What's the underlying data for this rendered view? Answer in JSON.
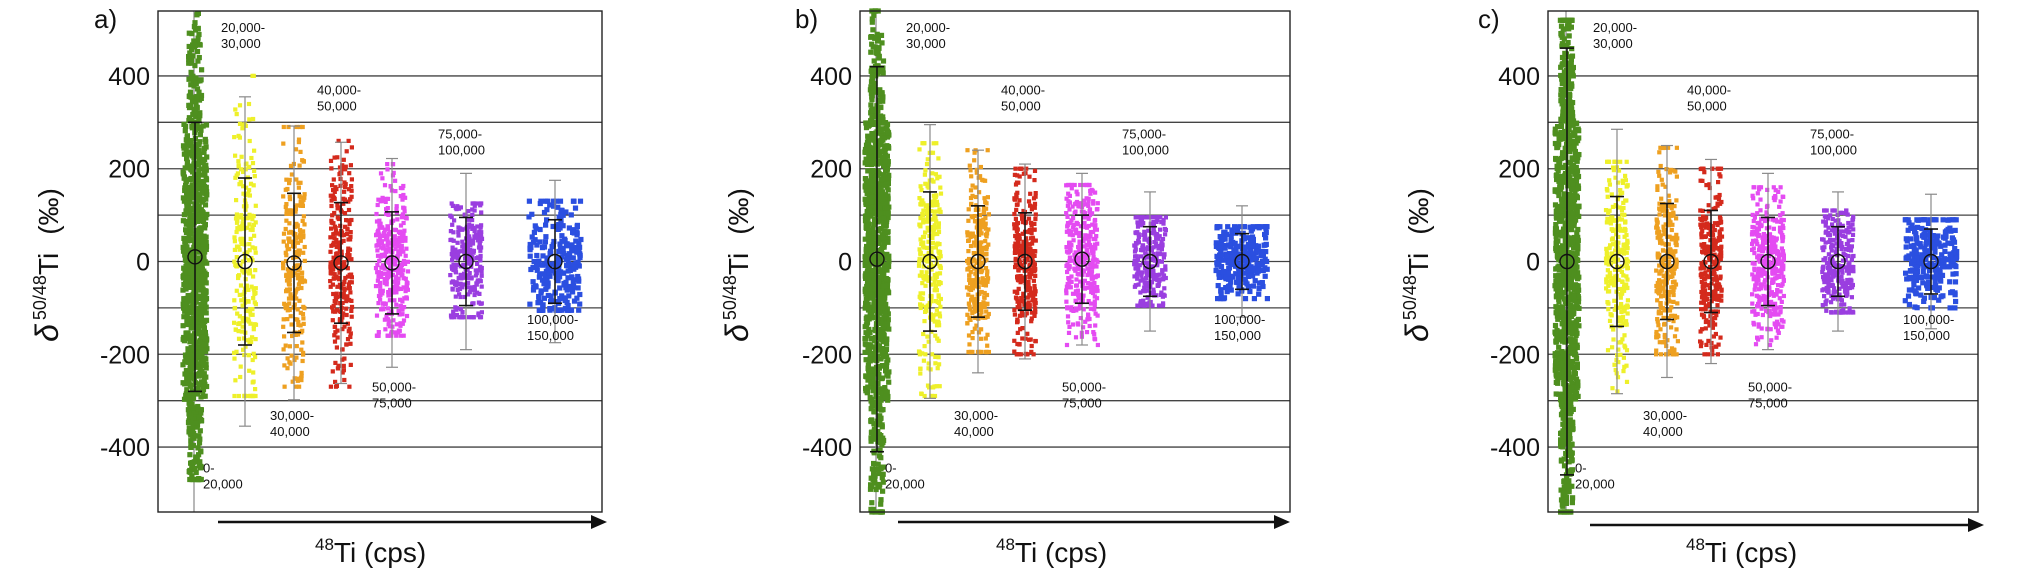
{
  "colors": {
    "green": "#4e8f1f",
    "yellow": "#eef02a",
    "orange": "#eea020",
    "red": "#d42a1c",
    "pink": "#e44bf2",
    "purple": "#9a3ee0",
    "blue": "#2b4fe0",
    "axis": "#222222",
    "grid": "#444444"
  },
  "chart_data": [
    {
      "type": "scatter",
      "panel_label": "a)",
      "ylabel_main": "δ",
      "ylabel_sup": "50/48",
      "ylabel_elem": "Ti",
      "ylabel_unit": "(‰)",
      "xlabel_sup": "48",
      "xlabel_rest": "Ti (cps)",
      "ylim": [
        -540,
        540
      ],
      "yticks": [
        -400,
        -200,
        0,
        200,
        400
      ],
      "grid_y": [
        -400,
        -300,
        -200,
        -100,
        0,
        100,
        200,
        300,
        400
      ],
      "grid": true,
      "groups": [
        {
          "name": "0-20,000",
          "label_line1": "0-",
          "label_line2": "20,000",
          "label_side": "below",
          "color": "green",
          "mean": 10,
          "sd2": 290,
          "n": 900,
          "spread": 235,
          "ymin": -470,
          "ymax": 535
        },
        {
          "name": "20,000-30,000",
          "label_line1": "20,000-",
          "label_line2": "30,000",
          "label_side": "above",
          "color": "yellow",
          "mean": 0,
          "sd2": 180,
          "gray_err": 355,
          "n": 230,
          "spread": 160,
          "ymin": -290,
          "ymax": 400
        },
        {
          "name": "30,000-40,000",
          "label_line1": "30,000-",
          "label_line2": "40,000",
          "label_side": "below",
          "color": "orange",
          "mean": -3,
          "sd2": 150,
          "gray_err": 295,
          "n": 230,
          "spread": 135,
          "ymin": -270,
          "ymax": 290
        },
        {
          "name": "40,000-50,000",
          "label_line1": "40,000-",
          "label_line2": "50,000",
          "label_side": "above",
          "color": "red",
          "mean": -3,
          "sd2": 130,
          "gray_err": 260,
          "n": 260,
          "spread": 115,
          "ymin": -270,
          "ymax": 260
        },
        {
          "name": "50,000-75,000",
          "label_line1": "50,000-",
          "label_line2": "75,000",
          "label_side": "below",
          "color": "pink",
          "mean": -3,
          "sd2": 110,
          "gray_err": 225,
          "n": 320,
          "spread": 90,
          "ymin": -160,
          "ymax": 210
        },
        {
          "name": "75,000-100,000",
          "label_line1": "75,000-",
          "label_line2": "100,000",
          "label_side": "above",
          "color": "purple",
          "mean": 0,
          "sd2": 95,
          "gray_err": 190,
          "n": 260,
          "spread": 75,
          "ymin": -120,
          "ymax": 125
        },
        {
          "name": "100,000-150,000",
          "label_line1": "100,000-",
          "label_line2": "150,000",
          "label_side": "below",
          "color": "blue",
          "mean": 0,
          "sd2": 90,
          "gray_err": 175,
          "n": 260,
          "spread": 70,
          "ymin": -105,
          "ymax": 130
        }
      ]
    },
    {
      "type": "scatter",
      "panel_label": "b)",
      "ylabel_main": "δ",
      "ylabel_sup": "50/48",
      "ylabel_elem": "Ti",
      "ylabel_unit": "(‰)",
      "xlabel_sup": "48",
      "xlabel_rest": "Ti (cps)",
      "ylim": [
        -540,
        540
      ],
      "yticks": [
        -400,
        -200,
        0,
        200,
        400
      ],
      "grid_y": [
        -400,
        -300,
        -200,
        -100,
        0,
        100,
        200,
        300,
        400
      ],
      "grid": true,
      "groups": [
        {
          "name": "0-20,000",
          "label_line1": "0-",
          "label_line2": "20,000",
          "label_side": "below",
          "color": "green",
          "mean": 5,
          "sd2": 415,
          "n": 1000,
          "spread": 240,
          "ymin": -540,
          "ymax": 540
        },
        {
          "name": "20,000-30,000",
          "label_line1": "20,000-",
          "label_line2": "30,000",
          "label_side": "above",
          "color": "yellow",
          "mean": 0,
          "sd2": 150,
          "gray_err": 295,
          "n": 260,
          "spread": 130,
          "ymin": -290,
          "ymax": 255
        },
        {
          "name": "30,000-40,000",
          "label_line1": "30,000-",
          "label_line2": "40,000",
          "label_side": "below",
          "color": "orange",
          "mean": 0,
          "sd2": 120,
          "gray_err": 240,
          "n": 260,
          "spread": 110,
          "ymin": -195,
          "ymax": 240
        },
        {
          "name": "40,000-50,000",
          "label_line1": "40,000-",
          "label_line2": "50,000",
          "label_side": "above",
          "color": "red",
          "mean": 0,
          "sd2": 105,
          "gray_err": 210,
          "n": 280,
          "spread": 95,
          "ymin": -200,
          "ymax": 200
        },
        {
          "name": "50,000-75,000",
          "label_line1": "50,000-",
          "label_line2": "75,000",
          "label_side": "below",
          "color": "pink",
          "mean": 5,
          "sd2": 95,
          "gray_err": 185,
          "n": 330,
          "spread": 80,
          "ymin": -180,
          "ymax": 165
        },
        {
          "name": "75,000-100,000",
          "label_line1": "75,000-",
          "label_line2": "100,000",
          "label_side": "above",
          "color": "purple",
          "mean": 0,
          "sd2": 75,
          "gray_err": 150,
          "n": 260,
          "spread": 60,
          "ymin": -95,
          "ymax": 95
        },
        {
          "name": "100,000-150,000",
          "label_line1": "100,000-",
          "label_line2": "150,000",
          "label_side": "below",
          "color": "blue",
          "mean": 0,
          "sd2": 60,
          "gray_err": 120,
          "n": 260,
          "spread": 45,
          "ymin": -80,
          "ymax": 75
        }
      ]
    },
    {
      "type": "scatter",
      "panel_label": "c)",
      "ylabel_main": "δ",
      "ylabel_sup": "50/48",
      "ylabel_elem": "Ti",
      "ylabel_unit": "(‰)",
      "xlabel_sup": "48",
      "xlabel_rest": "Ti (cps)",
      "ylim": [
        -540,
        540
      ],
      "yticks": [
        -400,
        -200,
        0,
        200,
        400
      ],
      "grid_y": [
        -400,
        -300,
        -200,
        -100,
        0,
        100,
        200,
        300,
        400
      ],
      "grid": true,
      "groups": [
        {
          "name": "0-20,000",
          "label_line1": "0-",
          "label_line2": "20,000",
          "label_side": "below",
          "color": "green",
          "mean": 0,
          "sd2": 460,
          "n": 1000,
          "spread": 250,
          "ymin": -540,
          "ymax": 520
        },
        {
          "name": "20,000-30,000",
          "label_line1": "20,000-",
          "label_line2": "30,000",
          "label_side": "above",
          "color": "yellow",
          "mean": 0,
          "sd2": 140,
          "gray_err": 285,
          "n": 250,
          "spread": 120,
          "ymin": -280,
          "ymax": 215
        },
        {
          "name": "30,000-40,000",
          "label_line1": "30,000-",
          "label_line2": "40,000",
          "label_side": "below",
          "color": "orange",
          "mean": 0,
          "sd2": 125,
          "gray_err": 250,
          "n": 260,
          "spread": 110,
          "ymin": -200,
          "ymax": 245
        },
        {
          "name": "40,000-50,000",
          "label_line1": "40,000-",
          "label_line2": "50,000",
          "label_side": "above",
          "color": "red",
          "mean": 0,
          "sd2": 110,
          "gray_err": 220,
          "n": 280,
          "spread": 95,
          "ymin": -200,
          "ymax": 200
        },
        {
          "name": "50,000-75,000",
          "label_line1": "50,000-",
          "label_line2": "75,000",
          "label_side": "below",
          "color": "pink",
          "mean": 0,
          "sd2": 95,
          "gray_err": 190,
          "n": 330,
          "spread": 80,
          "ymin": -180,
          "ymax": 160
        },
        {
          "name": "75,000-100,000",
          "label_line1": "75,000-",
          "label_line2": "100,000",
          "label_side": "above",
          "color": "purple",
          "mean": 0,
          "sd2": 75,
          "gray_err": 150,
          "n": 260,
          "spread": 60,
          "ymin": -110,
          "ymax": 110
        },
        {
          "name": "100,000-150,000",
          "label_line1": "100,000-",
          "label_line2": "150,000",
          "label_side": "below",
          "color": "blue",
          "mean": 0,
          "sd2": 70,
          "gray_err": 145,
          "n": 260,
          "spread": 50,
          "ymin": -100,
          "ymax": 90
        }
      ]
    }
  ]
}
